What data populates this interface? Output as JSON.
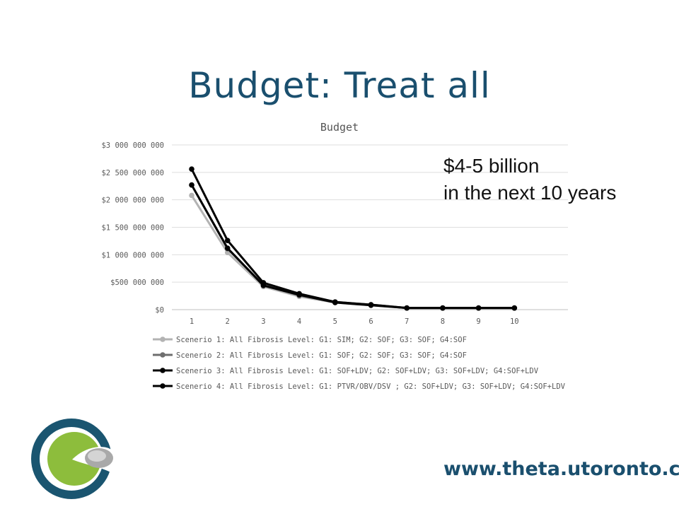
{
  "slide": {
    "title": "Budget: Treat all",
    "callout": [
      "$4-5 billion",
      "in the next 10 years"
    ],
    "url": "www.theta.utoronto.ca"
  },
  "chart_data": {
    "type": "line",
    "title": "Budget",
    "xlabel": "",
    "ylabel": "",
    "x": [
      "1",
      "2",
      "3",
      "4",
      "5",
      "6",
      "7",
      "8",
      "9",
      "10"
    ],
    "ylim": [
      0,
      3000000000
    ],
    "y_ticks": [
      {
        "value": 0,
        "label": "$0"
      },
      {
        "value": 500000000,
        "label": "$500 000 000"
      },
      {
        "value": 1000000000,
        "label": "$1 000 000 000"
      },
      {
        "value": 1500000000,
        "label": "$1 500 000 000"
      },
      {
        "value": 2000000000,
        "label": "$2 000 000 000"
      },
      {
        "value": 2500000000,
        "label": "$2 500 000 000"
      },
      {
        "value": 3000000000,
        "label": "$3 000 000 000"
      }
    ],
    "grid": true,
    "legend_position": "bottom",
    "series": [
      {
        "name": "Scenerio 1: All Fibrosis Level: G1: SIM; G2: SOF; G3: SOF; G4:SOF",
        "color": "#b3b3b3",
        "values": [
          2080000000,
          1040000000,
          420000000,
          240000000,
          130000000,
          80000000,
          30000000,
          30000000,
          30000000,
          30000000
        ]
      },
      {
        "name": "Scenerio 2: All Fibrosis Level: G1: SOF; G2: SOF; G3: SOF; G4:SOF",
        "color": "#6e6e6e",
        "values": [
          2270000000,
          1110000000,
          450000000,
          260000000,
          140000000,
          90000000,
          30000000,
          30000000,
          30000000,
          30000000
        ]
      },
      {
        "name": "Scenerio 3: All Fibrosis Level: G1: SOF+LDV; G2: SOF+LDV; G3: SOF+LDV; G4:SOF+LDV",
        "color": "#000000",
        "values": [
          2560000000,
          1260000000,
          490000000,
          290000000,
          140000000,
          90000000,
          30000000,
          30000000,
          30000000,
          30000000
        ]
      },
      {
        "name": "Scenerio 4: All Fibrosis Level: G1: PTVR/OBV/DSV ; G2: SOF+LDV; G3: SOF+LDV; G4:SOF+LDV",
        "color": "#000000",
        "values": [
          2270000000,
          1120000000,
          440000000,
          270000000,
          130000000,
          80000000,
          30000000,
          30000000,
          30000000,
          30000000
        ]
      }
    ]
  }
}
